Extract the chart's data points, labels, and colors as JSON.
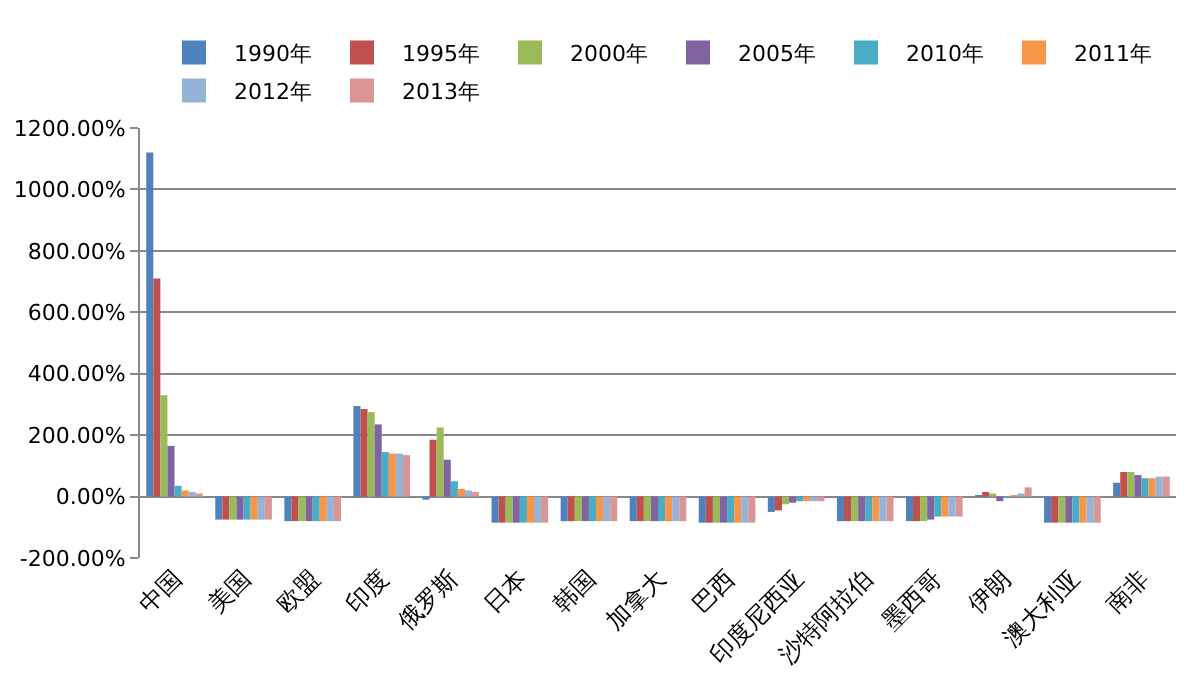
{
  "chart_data": {
    "type": "bar",
    "categories": [
      "中国",
      "美国",
      "欧盟",
      "印度",
      "俄罗斯",
      "日本",
      "韩国",
      "加拿大",
      "巴西",
      "印度尼西亚",
      "沙特阿拉伯",
      "墨西哥",
      "伊朗",
      "澳大利亚",
      "南非"
    ],
    "series": [
      {
        "name": "1990年",
        "color": "#4f81bd",
        "values": [
          1120,
          -75,
          -80,
          295,
          -10,
          -85,
          -80,
          -80,
          -85,
          -50,
          -80,
          -80,
          5,
          -85,
          45
        ]
      },
      {
        "name": "1995年",
        "color": "#c0504d",
        "values": [
          710,
          -75,
          -80,
          285,
          185,
          -85,
          -80,
          -80,
          -85,
          -45,
          -80,
          -80,
          15,
          -85,
          80
        ]
      },
      {
        "name": "2000年",
        "color": "#9bbb59",
        "values": [
          330,
          -75,
          -80,
          275,
          225,
          -85,
          -80,
          -80,
          -85,
          -25,
          -80,
          -80,
          10,
          -85,
          80
        ]
      },
      {
        "name": "2005年",
        "color": "#8064a2",
        "values": [
          165,
          -75,
          -80,
          235,
          120,
          -85,
          -80,
          -80,
          -85,
          -20,
          -80,
          -75,
          -15,
          -85,
          70
        ]
      },
      {
        "name": "2010年",
        "color": "#4bacc6",
        "values": [
          35,
          -75,
          -80,
          145,
          50,
          -85,
          -80,
          -80,
          -85,
          -15,
          -80,
          -65,
          -5,
          -85,
          60
        ]
      },
      {
        "name": "2011年",
        "color": "#f79646",
        "values": [
          20,
          -75,
          -80,
          140,
          25,
          -85,
          -80,
          -80,
          -85,
          -15,
          -80,
          -65,
          5,
          -85,
          60
        ]
      },
      {
        "name": "2012年",
        "color": "#95b3d7",
        "values": [
          15,
          -75,
          -80,
          140,
          20,
          -85,
          -80,
          -80,
          -85,
          -15,
          -80,
          -65,
          10,
          -85,
          65
        ]
      },
      {
        "name": "2013年",
        "color": "#d99694",
        "values": [
          10,
          -75,
          -80,
          135,
          15,
          -85,
          -80,
          -80,
          -85,
          -15,
          -80,
          -65,
          30,
          -85,
          65
        ]
      }
    ],
    "ylim": [
      -200,
      1200
    ],
    "yticks": [
      {
        "value": -200,
        "label": "-200.00%"
      },
      {
        "value": 0,
        "label": "0.00%"
      },
      {
        "value": 200,
        "label": "200.00%"
      },
      {
        "value": 400,
        "label": "400.00%"
      },
      {
        "value": 600,
        "label": "600.00%"
      },
      {
        "value": 800,
        "label": "800.00%"
      },
      {
        "value": 1000,
        "label": "1000.00%"
      },
      {
        "value": 1200,
        "label": "1200.00%"
      }
    ],
    "grid": "y",
    "legend": "top"
  }
}
